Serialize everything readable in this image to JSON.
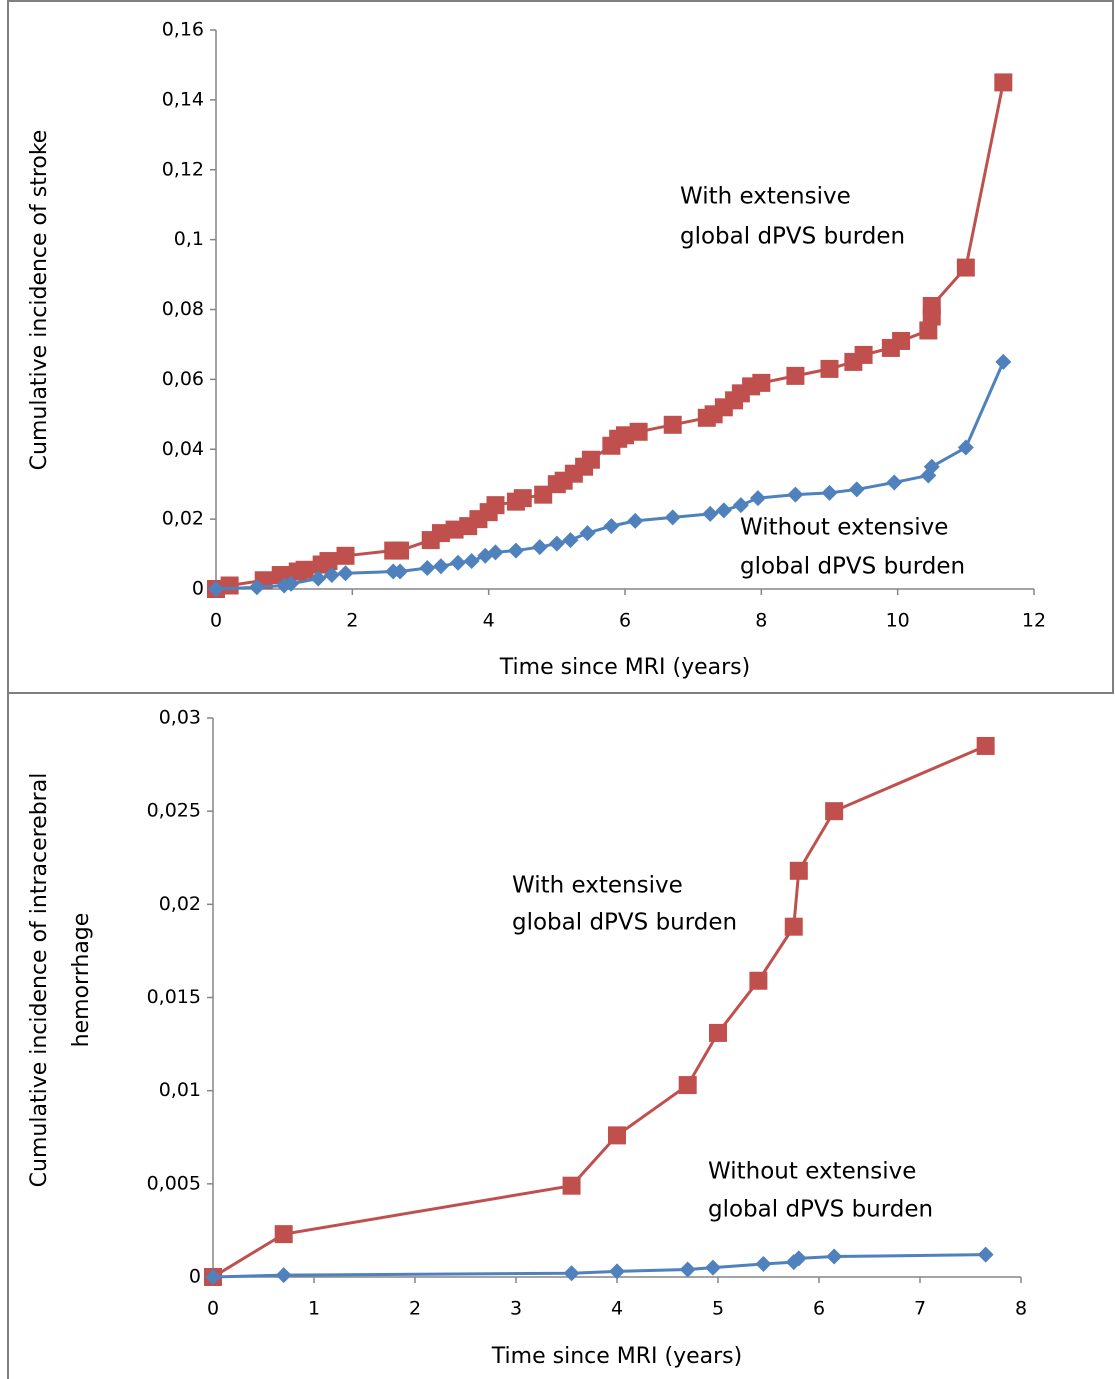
{
  "chart_data": [
    {
      "type": "line",
      "xlabel": "Time since MRI (years)",
      "ylabel": [
        "Cumulative incidence of stroke"
      ],
      "xlim": [
        0,
        12
      ],
      "xticks": [
        0,
        2,
        4,
        6,
        8,
        10,
        12
      ],
      "ylim": [
        0,
        0.16
      ],
      "yticks": [
        0,
        {
          "value": 0.02,
          "label": "0,02"
        },
        {
          "value": 0.04,
          "label": "0,04"
        },
        {
          "value": 0.06,
          "label": "0,06"
        },
        {
          "value": 0.08,
          "label": "0,08"
        },
        {
          "value": 0.1,
          "label": "0,1"
        },
        {
          "value": 0.12,
          "label": "0,12"
        },
        {
          "value": 0.14,
          "label": "0,14"
        },
        {
          "value": 0.16,
          "label": "0,16"
        }
      ],
      "annotations": [
        [
          "With extensive",
          "global dPVS burden"
        ],
        [
          "Without extensive",
          "global dPVS burden"
        ]
      ],
      "series": [
        {
          "color": "#c0504d",
          "marker": "square",
          "x": [
            0,
            0.2,
            0.7,
            0.95,
            1.2,
            1.3,
            1.55,
            1.65,
            1.9,
            2.6,
            2.7,
            3.15,
            3.3,
            3.5,
            3.7,
            3.85,
            4.0,
            4.1,
            4.4,
            4.5,
            4.8,
            5.0,
            5.1,
            5.25,
            5.4,
            5.5,
            5.8,
            5.9,
            6.0,
            6.2,
            6.7,
            7.2,
            7.3,
            7.45,
            7.6,
            7.7,
            7.85,
            8.0,
            8.5,
            9.0,
            9.35,
            9.5,
            9.9,
            10.05,
            10.45,
            10.5,
            10.5,
            11.0,
            11.55
          ],
          "values": [
            0,
            0.001,
            0.0025,
            0.004,
            0.005,
            0.0055,
            0.007,
            0.008,
            0.0095,
            0.011,
            0.011,
            0.014,
            0.016,
            0.017,
            0.018,
            0.02,
            0.022,
            0.024,
            0.025,
            0.026,
            0.027,
            0.03,
            0.031,
            0.033,
            0.035,
            0.037,
            0.041,
            0.043,
            0.044,
            0.045,
            0.047,
            0.049,
            0.05,
            0.052,
            0.054,
            0.056,
            0.058,
            0.059,
            0.061,
            0.063,
            0.065,
            0.067,
            0.069,
            0.071,
            0.074,
            0.078,
            0.081,
            0.092,
            0.145
          ]
        },
        {
          "color": "#4f81bd",
          "marker": "diamond",
          "x": [
            0,
            0.6,
            1.0,
            1.1,
            1.5,
            1.7,
            1.9,
            2.6,
            2.7,
            3.1,
            3.3,
            3.55,
            3.75,
            3.95,
            4.1,
            4.4,
            4.75,
            5.0,
            5.2,
            5.45,
            5.8,
            6.15,
            6.7,
            7.25,
            7.45,
            7.7,
            7.95,
            8.5,
            9.0,
            9.4,
            9.95,
            10.45,
            10.5,
            11.0,
            11.55
          ],
          "values": [
            0,
            0.0005,
            0.001,
            0.0015,
            0.003,
            0.004,
            0.0045,
            0.005,
            0.005,
            0.006,
            0.0065,
            0.0075,
            0.008,
            0.0095,
            0.0105,
            0.011,
            0.012,
            0.013,
            0.014,
            0.016,
            0.018,
            0.0195,
            0.0205,
            0.0215,
            0.0225,
            0.024,
            0.026,
            0.027,
            0.0275,
            0.0285,
            0.0305,
            0.0325,
            0.035,
            0.0405,
            0.065
          ]
        }
      ]
    },
    {
      "type": "line",
      "xlabel": "Time since MRI (years)",
      "ylabel": [
        "Cumulative incidence of intracerebral",
        "hemorrhage"
      ],
      "xlim": [
        0,
        8
      ],
      "xticks": [
        0,
        1,
        2,
        3,
        4,
        5,
        6,
        7,
        8
      ],
      "ylim": [
        0,
        0.03
      ],
      "yticks": [
        0,
        {
          "value": 0.005,
          "label": "0,005"
        },
        {
          "value": 0.01,
          "label": "0,01"
        },
        {
          "value": 0.015,
          "label": "0,015"
        },
        {
          "value": 0.02,
          "label": "0,02"
        },
        {
          "value": 0.025,
          "label": "0,025"
        },
        {
          "value": 0.03,
          "label": "0,03"
        }
      ],
      "annotations": [
        [
          "With extensive",
          "global dPVS burden"
        ],
        [
          "Without extensive",
          "global dPVS burden"
        ]
      ],
      "series": [
        {
          "color": "#c0504d",
          "marker": "square",
          "x": [
            0,
            0.7,
            3.55,
            4.0,
            4.7,
            5.0,
            5.4,
            5.75,
            5.8,
            6.15,
            7.65
          ],
          "values": [
            0,
            0.0023,
            0.0049,
            0.0076,
            0.0103,
            0.0131,
            0.0159,
            0.0188,
            0.0218,
            0.025,
            0.0285
          ]
        },
        {
          "color": "#4f81bd",
          "marker": "diamond",
          "x": [
            0,
            0.7,
            3.55,
            4.0,
            4.7,
            4.95,
            5.45,
            5.75,
            5.8,
            6.15,
            7.65
          ],
          "values": [
            0,
            0.0001,
            0.0002,
            0.0003,
            0.0004,
            0.0005,
            0.0007,
            0.0008,
            0.001,
            0.0011,
            0.0012
          ]
        }
      ]
    }
  ]
}
